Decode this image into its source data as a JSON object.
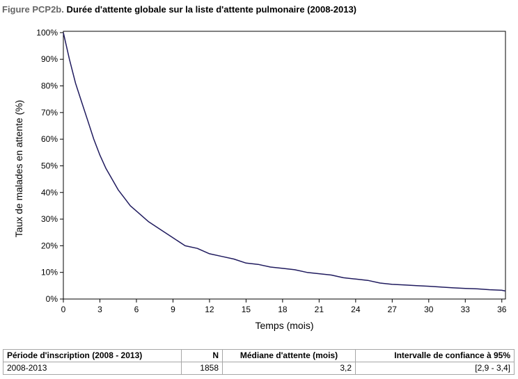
{
  "figure": {
    "prefix": "Figure PCP2b.",
    "title": "Durée d'attente globale sur la liste d'attente pulmonaire (2008-2013)"
  },
  "chart_data": {
    "type": "line",
    "xlabel": "Temps (mois)",
    "ylabel": "Taux de malades en attente (%)",
    "xlim": [
      0,
      36.3
    ],
    "ylim": [
      0,
      100.5
    ],
    "x_ticks": [
      "0",
      "3",
      "6",
      "9",
      "12",
      "15",
      "18",
      "21",
      "24",
      "27",
      "30",
      "33",
      "36"
    ],
    "y_ticks": [
      "0%",
      "10%",
      "20%",
      "30%",
      "40%",
      "50%",
      "60%",
      "70%",
      "80%",
      "90%",
      "100%"
    ],
    "grid": false,
    "line_color": "#1f1a5e",
    "series": [
      {
        "x": [
          0,
          0.5,
          1,
          1.5,
          2,
          2.5,
          3,
          3.5,
          4,
          4.5,
          5,
          5.5,
          6,
          7,
          8,
          9,
          10,
          11,
          12,
          13,
          14,
          15,
          16,
          17,
          18,
          19,
          20,
          21,
          22,
          23,
          24,
          25,
          26,
          27,
          28,
          29,
          30,
          31,
          32,
          33,
          34,
          35,
          36,
          36.3
        ],
        "y": [
          100,
          90,
          81,
          74,
          67,
          60,
          54,
          49,
          45,
          41,
          38,
          35,
          33,
          29,
          26,
          23,
          20,
          19,
          17,
          16,
          15,
          13.5,
          13,
          12,
          11.5,
          11,
          10,
          9.5,
          9,
          8,
          7.5,
          7,
          6,
          5.5,
          5.3,
          5,
          4.8,
          4.5,
          4.2,
          4,
          3.8,
          3.5,
          3.3,
          3
        ]
      }
    ]
  },
  "table": {
    "headers": [
      "Période d'inscription (2008 - 2013)",
      "N",
      "Médiane d'attente (mois)",
      "Intervalle de confiance à 95%"
    ],
    "rows": [
      [
        "2008-2013",
        "1858",
        "3,2",
        "[2,9 - 3,4]"
      ]
    ]
  }
}
